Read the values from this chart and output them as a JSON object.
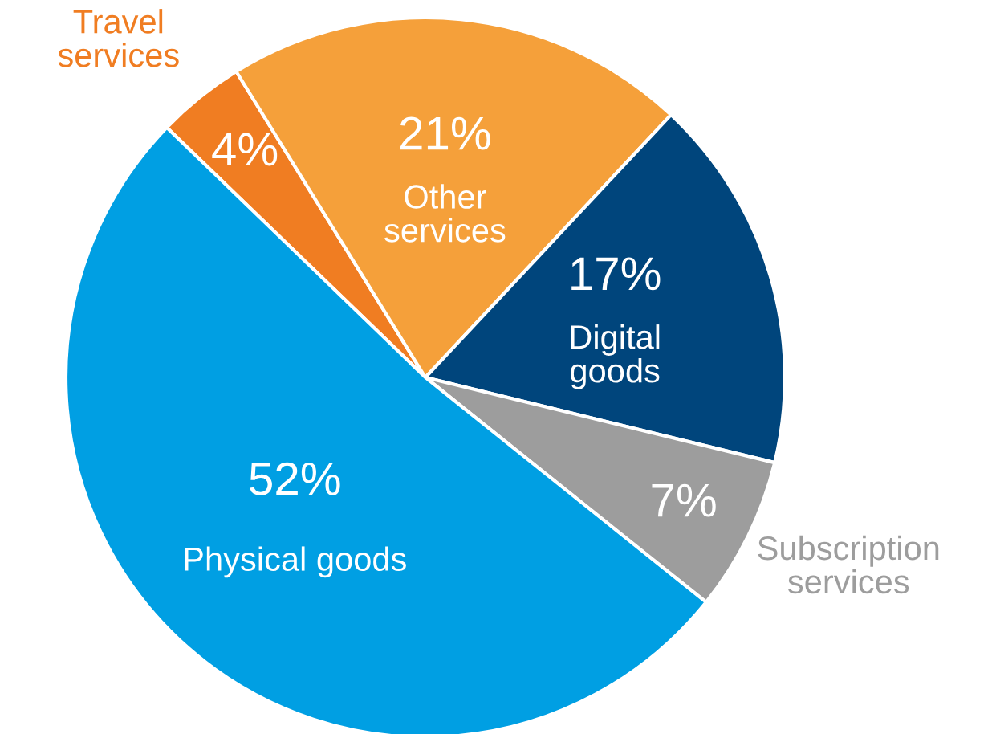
{
  "chart_data": {
    "type": "pie",
    "categories": [
      "Travel services",
      "Other services",
      "Digital goods",
      "Subscription services",
      "Physical goods"
    ],
    "values": [
      4,
      21,
      17,
      7,
      52
    ],
    "colors": [
      "#f07d22",
      "#f5a03a",
      "#00457c",
      "#9d9d9d",
      "#009fe3"
    ],
    "value_labels": [
      "4%",
      "21%",
      "17%",
      "7%",
      "52%"
    ]
  }
}
